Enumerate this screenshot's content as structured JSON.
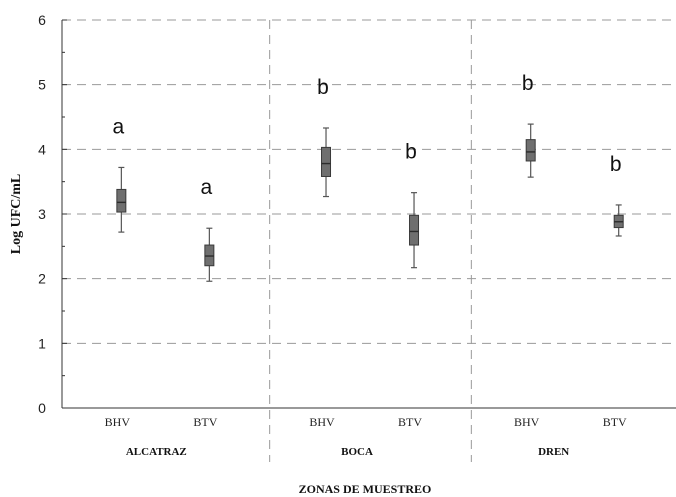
{
  "chart_data": {
    "type": "box",
    "ylabel": "Log UFC/mL",
    "xlabel": "ZONAS DE MUESTREO",
    "ylim": [
      0,
      6
    ],
    "yticks": [
      "0",
      "1",
      "2",
      "3",
      "4",
      "5",
      "6"
    ],
    "grid": "horizontal dashed",
    "groups": [
      {
        "name": "ALCATRAZ",
        "boxes": [
          {
            "label": "BHV",
            "min": 2.72,
            "q1": 3.03,
            "median": 3.18,
            "q3": 3.38,
            "max": 3.72,
            "letter": "a"
          },
          {
            "label": "BTV",
            "min": 1.96,
            "q1": 2.2,
            "median": 2.35,
            "q3": 2.52,
            "max": 2.78,
            "letter": "a"
          }
        ]
      },
      {
        "name": "BOCA",
        "boxes": [
          {
            "label": "BHV",
            "min": 3.27,
            "q1": 3.58,
            "median": 3.78,
            "q3": 4.03,
            "max": 4.33,
            "letter": "b"
          },
          {
            "label": "BTV",
            "min": 2.17,
            "q1": 2.52,
            "median": 2.73,
            "q3": 2.98,
            "max": 3.33,
            "letter": "b"
          }
        ]
      },
      {
        "name": "DREN",
        "boxes": [
          {
            "label": "BHV",
            "min": 3.57,
            "q1": 3.82,
            "median": 3.96,
            "q3": 4.15,
            "max": 4.39,
            "letter": "b"
          },
          {
            "label": "BTV",
            "min": 2.66,
            "q1": 2.79,
            "median": 2.88,
            "q3": 2.98,
            "max": 3.14,
            "letter": "b"
          }
        ]
      }
    ],
    "colors": {
      "box_fill": "#6f6f6f",
      "box_stroke": "#3a3a3a",
      "whisker": "#555555",
      "grid": "#9a9a9a"
    }
  }
}
